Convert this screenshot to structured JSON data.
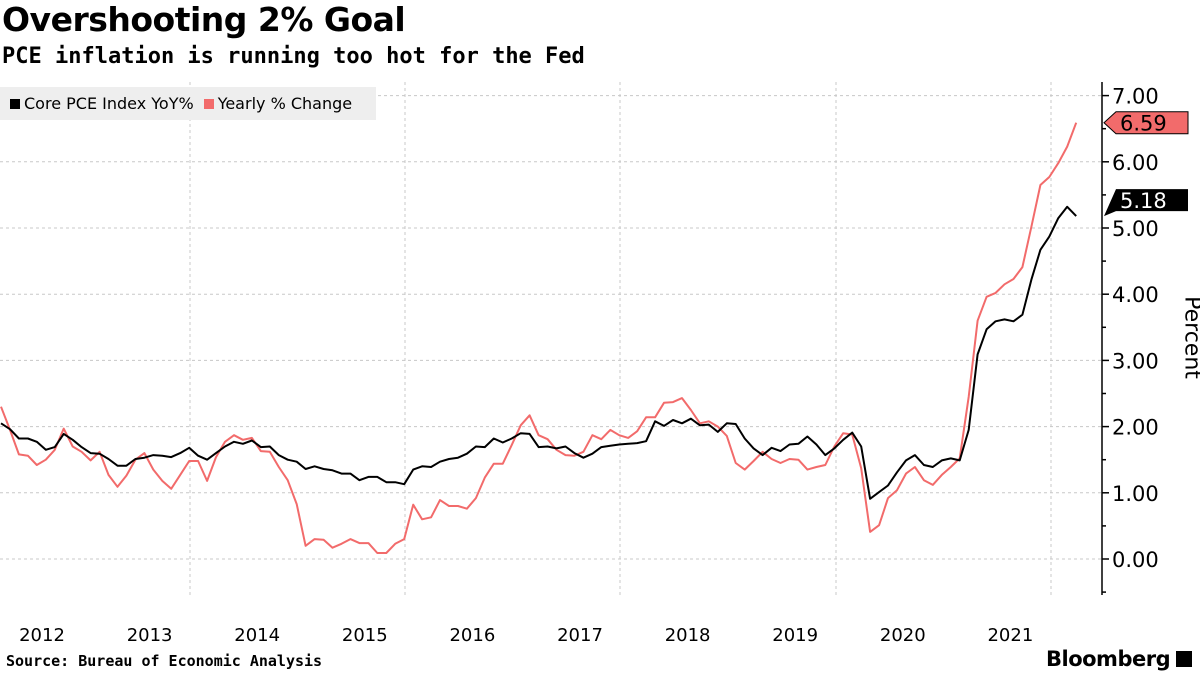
{
  "header": {
    "title": "Overshooting 2% Goal",
    "subtitle": "PCE inflation is running too hot for the Fed"
  },
  "footer": {
    "source": "Source: Bureau of Economic Analysis",
    "logo": "Bloomberg"
  },
  "chart_data": {
    "type": "line",
    "title": "Overshooting 2% Goal",
    "subtitle": "PCE inflation is running too hot for the Fed",
    "ylabel": "Percent",
    "xlabel": "",
    "frequency": "monthly",
    "start": "2012-03",
    "end": "2022-03",
    "x_tick_labels": [
      "2012",
      "2013",
      "2014",
      "2015",
      "2016",
      "2017",
      "2018",
      "2019",
      "2020",
      "2021"
    ],
    "y_tick_labels": [
      "0.00",
      "1.00",
      "2.00",
      "3.00",
      "4.00",
      "5.00",
      "6.00",
      "7.00"
    ],
    "ylim": [
      -0.5,
      7.2
    ],
    "y_axis_side": "right",
    "grid": true,
    "legend_position": "top-left",
    "series": [
      {
        "name": "Core PCE Index YoY%",
        "color": "#000000",
        "last_value_label": "5.18",
        "values": [
          2.05,
          1.96,
          1.82,
          1.82,
          1.77,
          1.65,
          1.69,
          1.89,
          1.8,
          1.69,
          1.6,
          1.59,
          1.51,
          1.41,
          1.41,
          1.51,
          1.53,
          1.57,
          1.56,
          1.54,
          1.6,
          1.68,
          1.56,
          1.5,
          1.6,
          1.7,
          1.77,
          1.74,
          1.79,
          1.69,
          1.7,
          1.57,
          1.5,
          1.47,
          1.36,
          1.4,
          1.36,
          1.34,
          1.29,
          1.29,
          1.19,
          1.24,
          1.24,
          1.16,
          1.16,
          1.13,
          1.35,
          1.4,
          1.39,
          1.47,
          1.51,
          1.53,
          1.59,
          1.7,
          1.69,
          1.82,
          1.76,
          1.82,
          1.9,
          1.89,
          1.69,
          1.7,
          1.67,
          1.7,
          1.6,
          1.53,
          1.59,
          1.69,
          1.71,
          1.73,
          1.74,
          1.75,
          1.78,
          2.08,
          2.01,
          2.1,
          2.05,
          2.12,
          2.02,
          2.03,
          1.92,
          2.05,
          2.04,
          1.82,
          1.67,
          1.57,
          1.68,
          1.63,
          1.73,
          1.74,
          1.85,
          1.73,
          1.57,
          1.67,
          1.8,
          1.91,
          1.7,
          0.91,
          1.01,
          1.11,
          1.31,
          1.49,
          1.57,
          1.42,
          1.39,
          1.49,
          1.52,
          1.49,
          1.95,
          3.09,
          3.47,
          3.59,
          3.62,
          3.59,
          3.69,
          4.22,
          4.67,
          4.87,
          5.15,
          5.32,
          5.18
        ]
      },
      {
        "name": "Yearly % Change",
        "color": "#f26b6b",
        "last_value_label": "6.59",
        "values": [
          2.3,
          1.95,
          1.58,
          1.56,
          1.42,
          1.5,
          1.65,
          1.97,
          1.7,
          1.62,
          1.49,
          1.62,
          1.27,
          1.09,
          1.26,
          1.5,
          1.6,
          1.35,
          1.18,
          1.06,
          1.27,
          1.48,
          1.48,
          1.18,
          1.54,
          1.77,
          1.87,
          1.8,
          1.83,
          1.63,
          1.62,
          1.39,
          1.19,
          0.83,
          0.2,
          0.3,
          0.29,
          0.17,
          0.23,
          0.3,
          0.24,
          0.24,
          0.09,
          0.09,
          0.23,
          0.3,
          0.82,
          0.6,
          0.63,
          0.89,
          0.8,
          0.8,
          0.76,
          0.92,
          1.23,
          1.44,
          1.44,
          1.72,
          2.02,
          2.17,
          1.87,
          1.81,
          1.65,
          1.57,
          1.56,
          1.62,
          1.87,
          1.81,
          1.95,
          1.87,
          1.83,
          1.93,
          2.14,
          2.14,
          2.36,
          2.37,
          2.43,
          2.25,
          2.05,
          2.08,
          2.0,
          1.86,
          1.45,
          1.35,
          1.48,
          1.62,
          1.51,
          1.45,
          1.51,
          1.5,
          1.35,
          1.39,
          1.42,
          1.7,
          1.9,
          1.88,
          1.37,
          0.41,
          0.51,
          0.92,
          1.04,
          1.29,
          1.39,
          1.19,
          1.12,
          1.27,
          1.39,
          1.52,
          2.45,
          3.6,
          3.96,
          4.02,
          4.15,
          4.23,
          4.41,
          5.02,
          5.65,
          5.77,
          5.98,
          6.23,
          6.59
        ]
      }
    ]
  }
}
